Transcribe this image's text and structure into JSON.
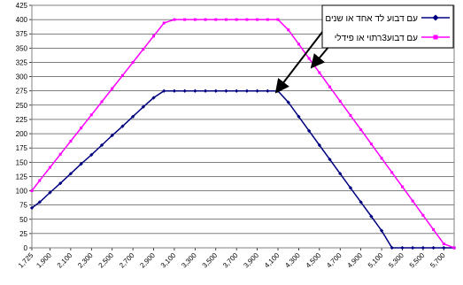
{
  "chart_data": {
    "type": "line",
    "title": "",
    "xlabel": "",
    "ylabel": "",
    "ylim": [
      0,
      425
    ],
    "y_ticks": [
      0,
      25,
      50,
      75,
      100,
      125,
      150,
      175,
      200,
      225,
      250,
      275,
      300,
      325,
      350,
      375,
      400,
      425
    ],
    "x_tick_labels": [
      "1,725",
      "1,900",
      "2,100",
      "2,300",
      "2,500",
      "2,700",
      "2,900",
      "3,100",
      "3,300",
      "3,500",
      "3,700",
      "3,900",
      "4,100",
      "4,300",
      "4,500",
      "4,700",
      "4,900",
      "5,100",
      "5,300",
      "5,500",
      "5,700"
    ],
    "grid": true,
    "legend_position": "top-right",
    "series": [
      {
        "name": "עם דבוע לד אחד או שנים",
        "color": "#000080",
        "marker": "diamond",
        "x": [
          1725,
          1800,
          1900,
          2000,
          2100,
          2200,
          2300,
          2400,
          2500,
          2600,
          2700,
          2800,
          2900,
          3000,
          3100,
          3200,
          3300,
          3400,
          3500,
          3600,
          3700,
          3800,
          3900,
          4000,
          4100,
          4200,
          4300,
          4400,
          4500,
          4600,
          4700,
          4800,
          4900,
          5000,
          5100,
          5200,
          5300,
          5400,
          5500,
          5600,
          5700,
          5800
        ],
        "values": [
          70,
          80,
          97,
          113,
          130,
          147,
          163,
          180,
          197,
          213,
          230,
          247,
          263,
          275,
          275,
          275,
          275,
          275,
          275,
          275,
          275,
          275,
          275,
          275,
          275,
          255,
          230,
          205,
          180,
          155,
          130,
          105,
          80,
          55,
          30,
          0,
          0,
          0,
          0,
          0,
          0,
          0
        ]
      },
      {
        "name": "עם דבוע3רתוי או פידלי",
        "color": "#ff00ff",
        "marker": "square",
        "x": [
          1725,
          1800,
          1900,
          2000,
          2100,
          2200,
          2300,
          2400,
          2500,
          2600,
          2700,
          2800,
          2900,
          3000,
          3100,
          3200,
          3300,
          3400,
          3500,
          3600,
          3700,
          3800,
          3900,
          4000,
          4100,
          4200,
          4300,
          4400,
          4500,
          4600,
          4700,
          4800,
          4900,
          5000,
          5100,
          5200,
          5300,
          5400,
          5500,
          5600,
          5700,
          5800
        ],
        "values": [
          100,
          118,
          141,
          164,
          187,
          210,
          233,
          256,
          279,
          302,
          325,
          348,
          371,
          394,
          400,
          400,
          400,
          400,
          400,
          400,
          400,
          400,
          400,
          400,
          400,
          382,
          357,
          332,
          307,
          282,
          257,
          232,
          207,
          182,
          157,
          132,
          107,
          82,
          57,
          32,
          7,
          0
        ]
      }
    ]
  }
}
